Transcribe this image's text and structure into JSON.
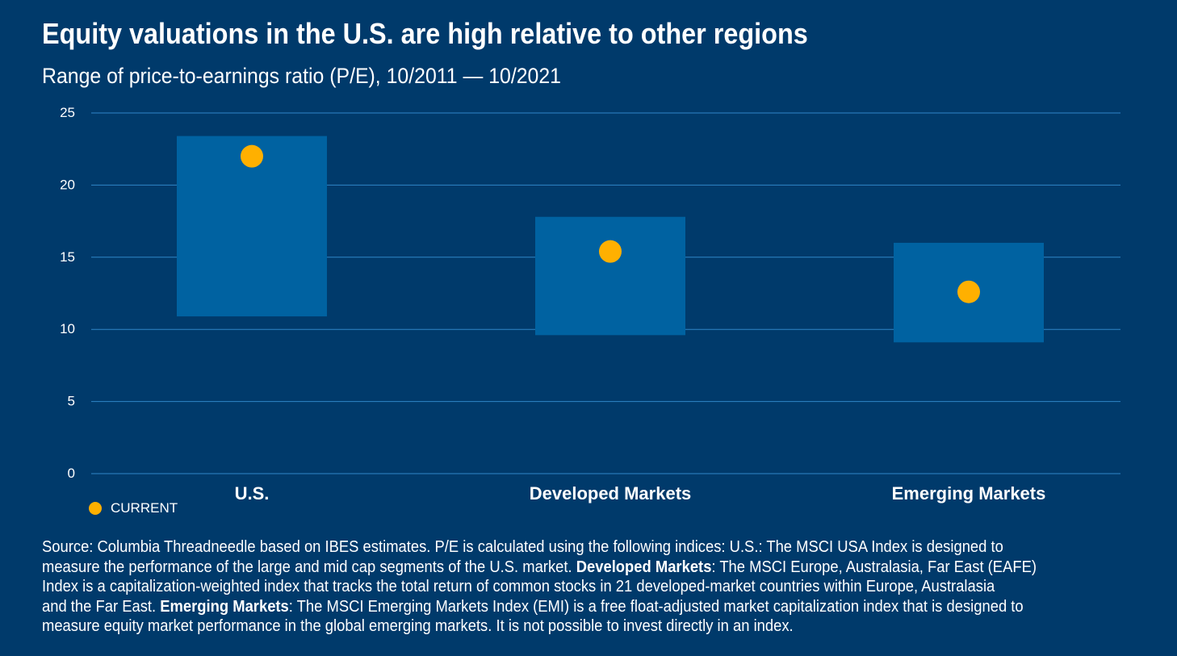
{
  "title": "Equity valuations in the U.S. are high relative to other regions",
  "subtitle": "Range of price-to-earnings ratio (P/E), 10/2011 — 10/2021",
  "colors": {
    "background": "#003a6b",
    "range_bar": "#0062a1",
    "current_dot": "#ffb000",
    "gridline": "#2f86c8",
    "text": "#ffffff"
  },
  "chart_data": {
    "type": "range-bar",
    "categories": [
      "U.S.",
      "Developed Markets",
      "Emerging Markets"
    ],
    "series": [
      {
        "name": "",
        "low": [
          10.9,
          9.6,
          9.1
        ],
        "high": [
          23.4,
          17.8,
          16.0
        ]
      },
      {
        "name": "CURRENT",
        "values": [
          22.0,
          15.4,
          12.6
        ]
      }
    ],
    "yticks": [
      0,
      5,
      10,
      15,
      20,
      25
    ],
    "ylim": [
      0,
      25
    ],
    "grid": true,
    "legend": "bottom-left"
  },
  "legend": {
    "current_label": "CURRENT"
  },
  "footnote": {
    "lines": [
      [
        {
          "text": "Source: Columbia Threadneedle based on IBES estimates. P/E is calculated using the following indices: U.S.: The MSCI USA Index is designed to",
          "bold": false
        }
      ],
      [
        {
          "text": "measure the performance of the large and mid cap segments of the U.S. market. ",
          "bold": false
        },
        {
          "text": "Developed Markets",
          "bold": true
        },
        {
          "text": ": The MSCI Europe, Australasia, Far East (EAFE)",
          "bold": false
        }
      ],
      [
        {
          "text": "Index is a capitalization-weighted index that tracks the total return of common stocks in 21 developed-market countries within Europe, Australasia",
          "bold": false
        }
      ],
      [
        {
          "text": "and the Far East. ",
          "bold": false
        },
        {
          "text": "Emerging Markets",
          "bold": true
        },
        {
          "text": ": The MSCI Emerging Markets Index (EMI) is a free float-adjusted market capitalization index that is designed to",
          "bold": false
        }
      ],
      [
        {
          "text": "measure equity market performance in the global emerging markets. It is not possible to invest directly in an index.",
          "bold": false
        }
      ]
    ]
  }
}
